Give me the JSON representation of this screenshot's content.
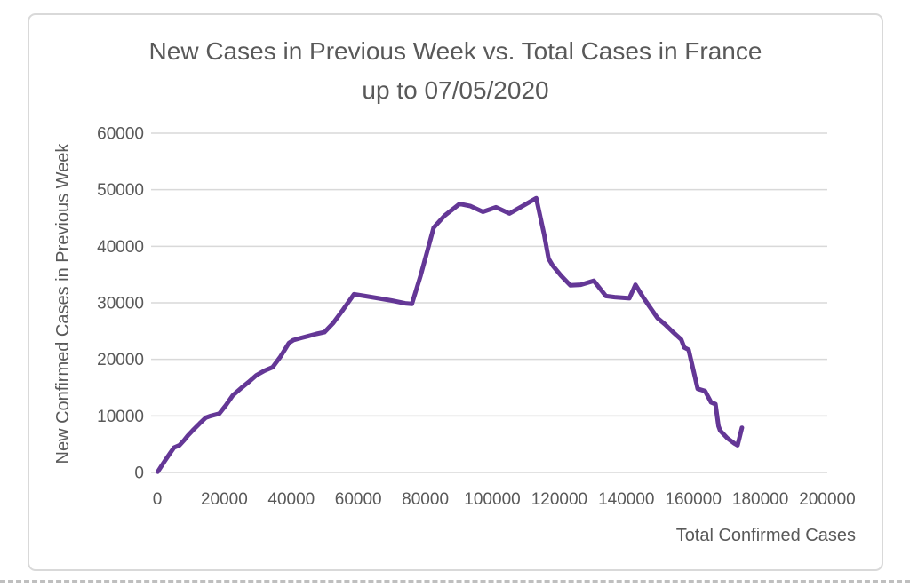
{
  "chart": {
    "title_line1": "New Cases in Previous Week vs. Total Cases in France",
    "title_line2": "up to 07/05/2020",
    "x_axis_title": "Total Confirmed Cases",
    "y_axis_title": "New Confirmed Cases in Previous Week",
    "colors": {
      "line": "#643796",
      "text": "#595959",
      "gridline": "#D9D9D9",
      "frame_border": "#D9D9D9"
    }
  },
  "chart_data": {
    "type": "line",
    "title": "New Cases in Previous Week vs. Total Cases in France up to 07/05/2020",
    "xlabel": "Total Confirmed Cases",
    "ylabel": "New Confirmed Cases in Previous Week",
    "xlim": [
      0,
      200000
    ],
    "ylim": [
      0,
      60000
    ],
    "x_ticks": [
      0,
      20000,
      40000,
      60000,
      80000,
      100000,
      120000,
      140000,
      160000,
      180000,
      200000
    ],
    "y_ticks": [
      0,
      10000,
      20000,
      30000,
      40000,
      50000,
      60000
    ],
    "grid": "horizontal-only",
    "legend": "none",
    "series": [
      {
        "points": [
          [
            130,
            130
          ],
          [
            1200,
            1100
          ],
          [
            2300,
            2100
          ],
          [
            3700,
            3300
          ],
          [
            5000,
            4400
          ],
          [
            6600,
            4800
          ],
          [
            8000,
            5700
          ],
          [
            9100,
            6500
          ],
          [
            10500,
            7400
          ],
          [
            12700,
            8700
          ],
          [
            14500,
            9700
          ],
          [
            16000,
            10000
          ],
          [
            18500,
            10400
          ],
          [
            20500,
            11900
          ],
          [
            22500,
            13600
          ],
          [
            25200,
            15000
          ],
          [
            27300,
            16000
          ],
          [
            29600,
            17200
          ],
          [
            32000,
            18000
          ],
          [
            34400,
            18600
          ],
          [
            36800,
            20500
          ],
          [
            39300,
            22900
          ],
          [
            40600,
            23400
          ],
          [
            43000,
            23800
          ],
          [
            45000,
            24100
          ],
          [
            47500,
            24500
          ],
          [
            49900,
            24800
          ],
          [
            52500,
            26400
          ],
          [
            55500,
            28800
          ],
          [
            58700,
            31500
          ],
          [
            62000,
            31200
          ],
          [
            66000,
            30800
          ],
          [
            70000,
            30400
          ],
          [
            74000,
            29900
          ],
          [
            76000,
            29800
          ],
          [
            78600,
            34800
          ],
          [
            82500,
            43300
          ],
          [
            85700,
            45400
          ],
          [
            90200,
            47500
          ],
          [
            93500,
            47100
          ],
          [
            97200,
            46100
          ],
          [
            101100,
            46900
          ],
          [
            105100,
            45800
          ],
          [
            109000,
            47100
          ],
          [
            113100,
            48500
          ],
          [
            115500,
            42000
          ],
          [
            116800,
            37800
          ],
          [
            118000,
            36600
          ],
          [
            120500,
            34800
          ],
          [
            123300,
            33100
          ],
          [
            126400,
            33200
          ],
          [
            130300,
            33900
          ],
          [
            133900,
            31200
          ],
          [
            136500,
            31000
          ],
          [
            138700,
            30900
          ],
          [
            140900,
            30800
          ],
          [
            142700,
            33200
          ],
          [
            145000,
            31000
          ],
          [
            146700,
            29500
          ],
          [
            149300,
            27300
          ],
          [
            151500,
            26200
          ],
          [
            153800,
            24900
          ],
          [
            156400,
            23500
          ],
          [
            157300,
            22100
          ],
          [
            158600,
            21700
          ],
          [
            160400,
            17100
          ],
          [
            161300,
            14800
          ],
          [
            163500,
            14400
          ],
          [
            165300,
            12400
          ],
          [
            166600,
            12100
          ],
          [
            167500,
            8200
          ],
          [
            168000,
            7400
          ],
          [
            170100,
            6100
          ],
          [
            172300,
            5100
          ],
          [
            173200,
            4800
          ],
          [
            174500,
            7900
          ]
        ]
      }
    ]
  }
}
